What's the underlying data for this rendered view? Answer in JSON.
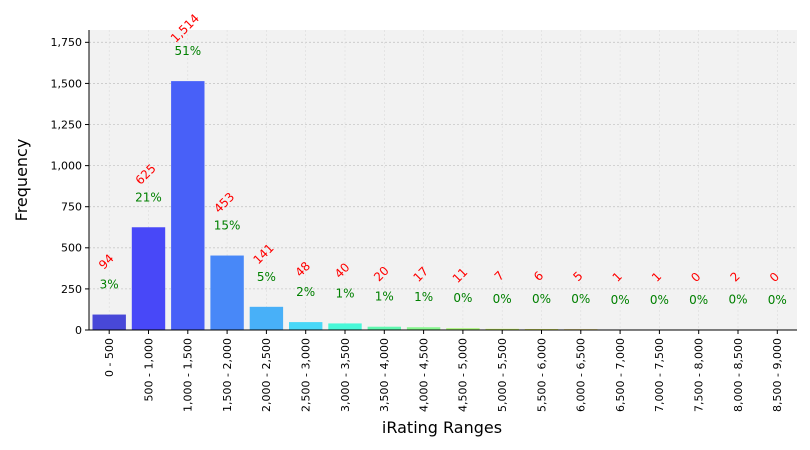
{
  "chart_data": {
    "type": "bar",
    "xlabel": "iRating Ranges",
    "ylabel": "Frequency",
    "ylim": [
      0,
      1825
    ],
    "yticks": [
      0,
      250,
      500,
      750,
      1000,
      1250,
      1500,
      1750
    ],
    "ytick_labels": [
      "0",
      "250",
      "500",
      "750",
      "1,000",
      "1,250",
      "1,500",
      "1,750"
    ],
    "grid": true,
    "categories": [
      "0 - 500",
      "500 - 1,000",
      "1,000 - 1,500",
      "1,500 - 2,000",
      "2,000 - 2,500",
      "2,500 - 3,000",
      "3,000 - 3,500",
      "3,500 - 4,000",
      "4,000 - 4,500",
      "4,500 - 5,000",
      "5,000 - 5,500",
      "5,500 - 6,000",
      "6,000 - 6,500",
      "6,500 - 7,000",
      "7,000 - 7,500",
      "7,500 - 8,000",
      "8,000 - 8,500",
      "8,500 - 9,000"
    ],
    "values": [
      94,
      625,
      1514,
      453,
      141,
      48,
      40,
      20,
      17,
      11,
      7,
      6,
      5,
      1,
      1,
      0,
      2,
      0
    ],
    "count_labels": [
      "94",
      "625",
      "1,514",
      "453",
      "141",
      "48",
      "40",
      "20",
      "17",
      "11",
      "7",
      "6",
      "5",
      "1",
      "1",
      "0",
      "2",
      "0"
    ],
    "percent_labels": [
      "3%",
      "21%",
      "51%",
      "15%",
      "5%",
      "2%",
      "1%",
      "1%",
      "1%",
      "0%",
      "0%",
      "0%",
      "0%",
      "0%",
      "0%",
      "0%",
      "0%",
      "0%"
    ],
    "bar_colors": [
      "#4848d8",
      "#4848f8",
      "#4860f8",
      "#4888f8",
      "#48b0f8",
      "#48d8f8",
      "#48f8d8",
      "#60f8b0",
      "#88f890",
      "#a8f878",
      "#c8f860",
      "#e0f060",
      "#f0d860",
      "#f8c060",
      "#f8a860",
      "#f89060",
      "#f87860",
      "#f86060"
    ],
    "count_label_color": "#ff0000",
    "percent_label_color": "#008000",
    "plot_background": "#f2f2f2"
  }
}
